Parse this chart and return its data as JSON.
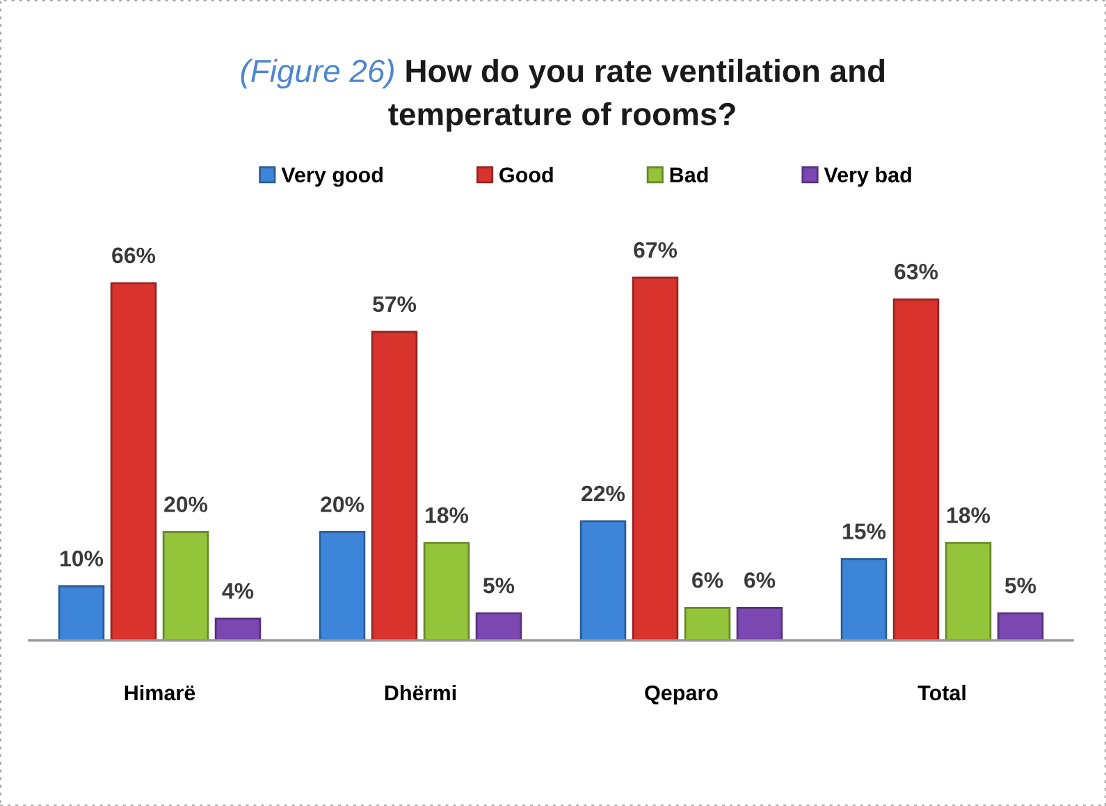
{
  "chart_data": {
    "type": "bar",
    "title": "(Figure 26) How do you rate ventilation and\ntemperature of rooms?",
    "categories": [
      "Himarë",
      "Dhërmi",
      "Qeparo",
      "Total"
    ],
    "series": [
      {
        "name": "Very good",
        "color": "#3d85d8",
        "values": [
          10,
          20,
          22,
          15
        ],
        "value_labels": [
          "10%",
          "20%",
          "22%",
          "15%"
        ]
      },
      {
        "name": "Good",
        "color": "#d9332e",
        "values": [
          66,
          57,
          67,
          63
        ],
        "value_labels": [
          "66%",
          "57%",
          "67%",
          "63%"
        ]
      },
      {
        "name": "Bad",
        "color": "#93c43a",
        "values": [
          20,
          18,
          6,
          18
        ],
        "value_labels": [
          "20%",
          "18%",
          "6%",
          "18%"
        ]
      },
      {
        "name": "Very bad",
        "color": "#7b48b2",
        "values": [
          4,
          5,
          6,
          5
        ],
        "value_labels": [
          "4%",
          "5%",
          "6%",
          "5%"
        ]
      }
    ],
    "legend": "top"
  }
}
